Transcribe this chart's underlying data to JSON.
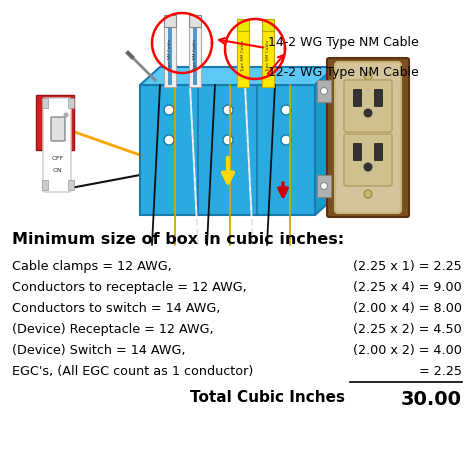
{
  "title": "Minimum size of box in cubic inches:",
  "rows": [
    {
      "label": "Cable clamps = 12 AWG,",
      "calc": "(2.25 x 1) = 2.25"
    },
    {
      "label": "Conductors to receptacle = 12 AWG,",
      "calc": "(2.25 x 4) = 9.00"
    },
    {
      "label": "Conductors to switch = 14 AWG,",
      "calc": "(2.00 x 4) = 8.00"
    },
    {
      "label": "(Device) Receptacle = 12 AWG,",
      "calc": "(2.25 x 2) = 4.50"
    },
    {
      "label": "(Device) Switch = 14 AWG,",
      "calc": "(2.00 x 2) = 4.00"
    },
    {
      "label": "EGC's, (All EGC count as 1 conductor)",
      "calc": "= 2.25"
    }
  ],
  "total_label": "Total Cubic Inches",
  "total_value": "30.00",
  "cable_label_1": "14-2 WG Type NM Cable",
  "cable_label_2": "12-2 WG Type NM Cable",
  "bg_color": "#ffffff",
  "title_color": "#000000",
  "text_color": "#000000",
  "box_blue": "#29ABE2",
  "box_blue_top": "#5BC8F5",
  "box_blue_side": "#1a9ac7",
  "box_edge": "#1a7aad",
  "cable_white": "#f0f0f0",
  "cable_yellow": "#FFE800",
  "switch_brown": "#8B4513",
  "outlet_beige": "#D4C49A",
  "outlet_face": "#C8B87A"
}
